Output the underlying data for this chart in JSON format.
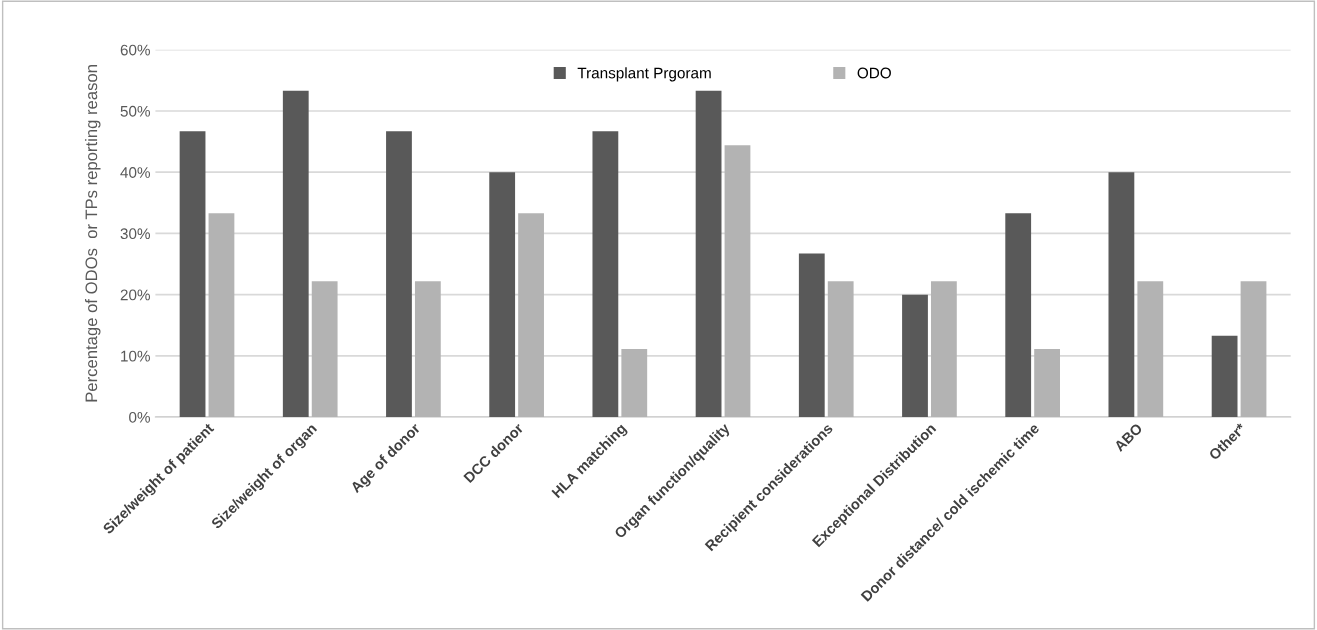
{
  "chart_data": {
    "type": "bar",
    "ylabel": "Percentage of ODOs  or TPs reporting reason",
    "categories": [
      "Size/weight of patient",
      "Size/weight of organ",
      "Age of donor",
      "DCC donor",
      "HLA matching",
      "Organ function/quality",
      "Recipient considerations",
      "Exceptional Distribution",
      "Donor distance/ cold ischemic time",
      "ABO",
      "Other*"
    ],
    "series": [
      {
        "name": "Transplant Prgoram",
        "color": "#595959",
        "values": [
          46.7,
          53.3,
          46.7,
          40,
          46.7,
          53.3,
          26.7,
          20,
          33.3,
          40,
          13.3
        ]
      },
      {
        "name": "ODO",
        "color": "#b3b3b3",
        "values": [
          33.3,
          22.2,
          22.2,
          33.3,
          11.1,
          44.4,
          22.2,
          22.2,
          11.1,
          22.2,
          22.2
        ]
      }
    ],
    "ylim": [
      0,
      60
    ],
    "yticks": [
      {
        "value": 0,
        "label": "0%"
      },
      {
        "value": 10,
        "label": "10%"
      },
      {
        "value": 20,
        "label": "20%"
      },
      {
        "value": 30,
        "label": "30%"
      },
      {
        "value": 40,
        "label": "40%"
      },
      {
        "value": 50,
        "label": "50%"
      },
      {
        "value": 60,
        "label": "60%"
      }
    ],
    "grid": "y",
    "legend": "top"
  }
}
